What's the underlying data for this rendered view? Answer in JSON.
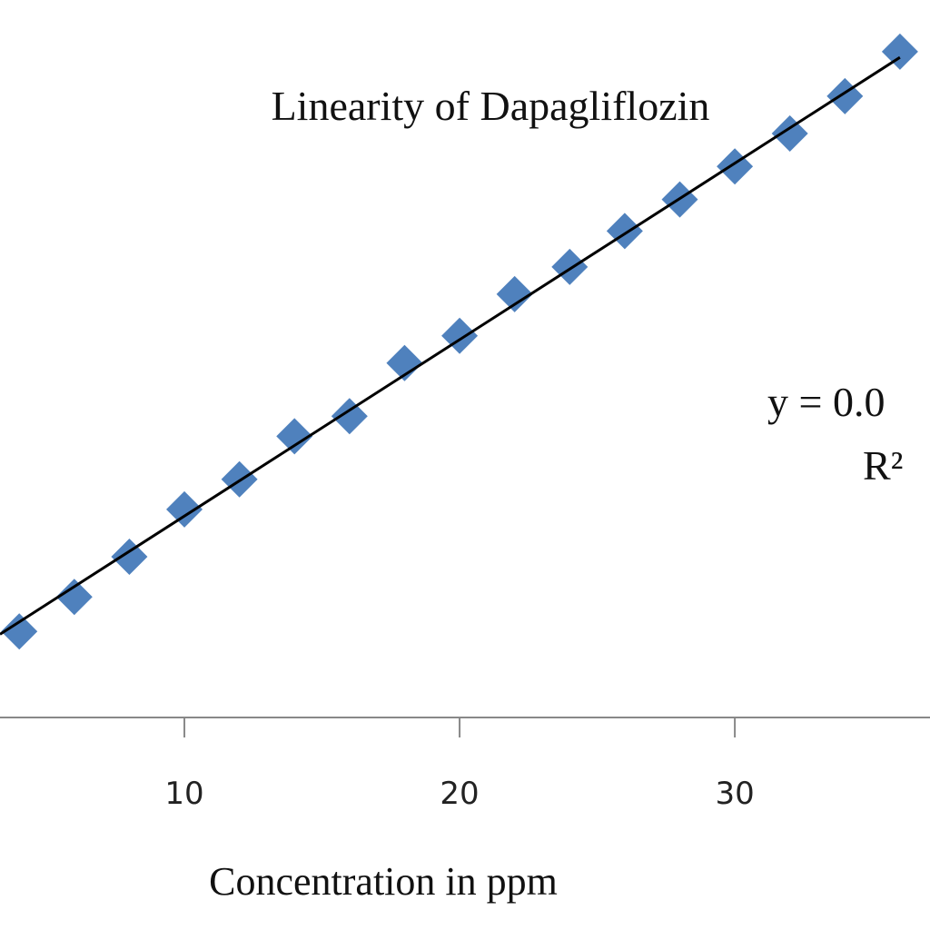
{
  "chart_data": {
    "type": "scatter",
    "title": "Linearity  of Dapagliflozin",
    "xlabel": "Concentration in ppm",
    "ylabel": "",
    "x_ticks": [
      10,
      20,
      30
    ],
    "xlim": [
      3.3,
      39.6
    ],
    "ylim": [
      0,
      0.5
    ],
    "grid": false,
    "series": [
      {
        "type": "scatter",
        "marker": "diamond",
        "color": "#4f81bd",
        "x": [
          4,
          6,
          8,
          10,
          12,
          14,
          16,
          18,
          20,
          22,
          24,
          26,
          28,
          30,
          32,
          34,
          36
        ],
        "y": [
          0.06,
          0.084,
          0.112,
          0.145,
          0.166,
          0.196,
          0.21,
          0.247,
          0.266,
          0.295,
          0.314,
          0.339,
          0.361,
          0.384,
          0.407,
          0.433,
          0.464
        ]
      },
      {
        "type": "line",
        "color": "#000000",
        "x": [
          3.3,
          36
        ],
        "y": [
          0.058,
          0.46
        ]
      }
    ],
    "annotations": {
      "equation": "y = 0.0",
      "r_squared": "R²"
    }
  }
}
